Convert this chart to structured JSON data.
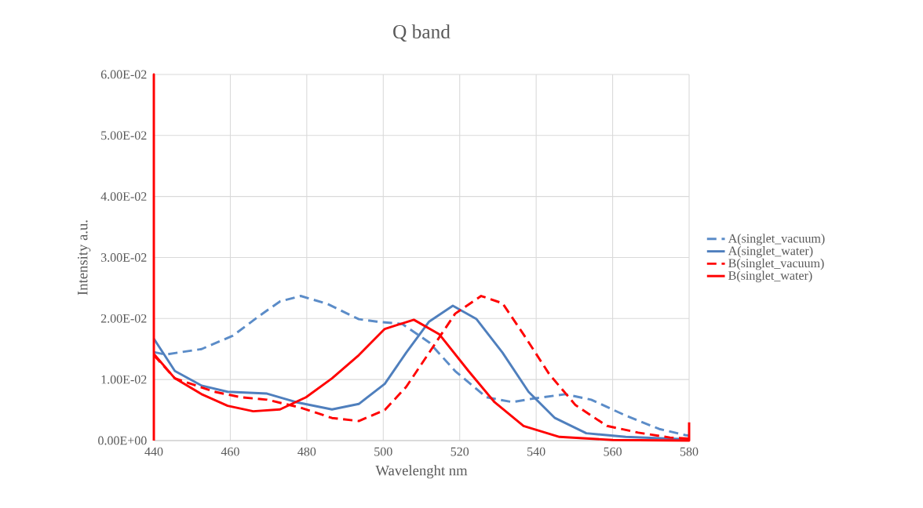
{
  "chart_data": {
    "type": "line",
    "title": "Q band",
    "xlabel": "Wavelenght nm",
    "ylabel": "Intensity a.u.",
    "xlim": [
      440,
      580
    ],
    "xticks": [
      440,
      460,
      480,
      500,
      520,
      540,
      560,
      580
    ],
    "ylim": [
      0,
      0.06
    ],
    "yticks": [
      {
        "value": 0,
        "label": "0.00E+00"
      },
      {
        "value": 0.01,
        "label": "1.00E-02"
      },
      {
        "value": 0.02,
        "label": "2.00E-02"
      },
      {
        "value": 0.03,
        "label": "3.00E-02"
      },
      {
        "value": 0.04,
        "label": "4.00E-02"
      },
      {
        "value": 0.05,
        "label": "5.00E-02"
      },
      {
        "value": 0.06,
        "label": "6.00E-02"
      }
    ],
    "grid": true,
    "legend": "right",
    "marker": "none",
    "series": [
      {
        "name": "A(singlet_vacuum)",
        "color": "#5b8cc8",
        "line_style": "dashed",
        "x": [
          440,
          443,
          452.5,
          460.7,
          467.5,
          473,
          478.4,
          485.4,
          493.6,
          498.3,
          505,
          512,
          518.8,
          527,
          533.8,
          539.4,
          547.6,
          554.4,
          563.4,
          572.2,
          579,
          580
        ],
        "values": [
          0.0145,
          0.0141,
          0.015,
          0.0172,
          0.0204,
          0.0228,
          0.0237,
          0.0224,
          0.0199,
          0.0195,
          0.0191,
          0.0161,
          0.0114,
          0.0071,
          0.0063,
          0.0069,
          0.0076,
          0.0067,
          0.0041,
          0.0019,
          0.0009,
          0.0008
        ]
      },
      {
        "name": "A(singlet_water)",
        "color": "#4f7fbd",
        "line_style": "solid",
        "x": [
          440,
          445.5,
          452.5,
          459.3,
          469.6,
          477.2,
          486.6,
          493.6,
          500.4,
          506,
          512,
          518.2,
          524.4,
          531.2,
          538,
          544.9,
          553.1,
          563.4,
          580
        ],
        "values": [
          0.0167,
          0.0114,
          0.009,
          0.008,
          0.0077,
          0.0063,
          0.0051,
          0.006,
          0.0093,
          0.0144,
          0.0195,
          0.0221,
          0.0199,
          0.0144,
          0.008,
          0.0037,
          0.0012,
          0.0006,
          0.0002
        ]
      },
      {
        "name": "B(singlet_vacuum)",
        "color": "#ff0000",
        "line_style": "dashed",
        "x": [
          440,
          445.5,
          455.8,
          462.8,
          469.6,
          478.4,
          486.6,
          493.6,
          500.4,
          506,
          512,
          518.8,
          525.6,
          531.2,
          536.7,
          543.4,
          550.3,
          558.5,
          566.7,
          575,
          580
        ],
        "values": [
          0.014,
          0.0102,
          0.008,
          0.0071,
          0.0067,
          0.0054,
          0.0037,
          0.0032,
          0.005,
          0.0088,
          0.0144,
          0.0208,
          0.0237,
          0.0225,
          0.0174,
          0.0109,
          0.0058,
          0.0024,
          0.0013,
          0.0005,
          0.0003
        ]
      },
      {
        "name": "B(singlet_water)",
        "color": "#ff0000",
        "line_style": "solid",
        "x": [
          440,
          440,
          440,
          445.5,
          452.5,
          459.3,
          466,
          473,
          479.8,
          486.6,
          493.6,
          500.4,
          508,
          514.7,
          522.3,
          529.1,
          536.7,
          546.1,
          560,
          580,
          580
        ],
        "values": [
          0,
          0.06,
          0.0142,
          0.0102,
          0.0076,
          0.0057,
          0.0048,
          0.0051,
          0.0071,
          0.0102,
          0.014,
          0.0183,
          0.0198,
          0.0174,
          0.0114,
          0.0063,
          0.0024,
          0.0006,
          0.0001,
          0,
          0.003
        ]
      }
    ]
  }
}
